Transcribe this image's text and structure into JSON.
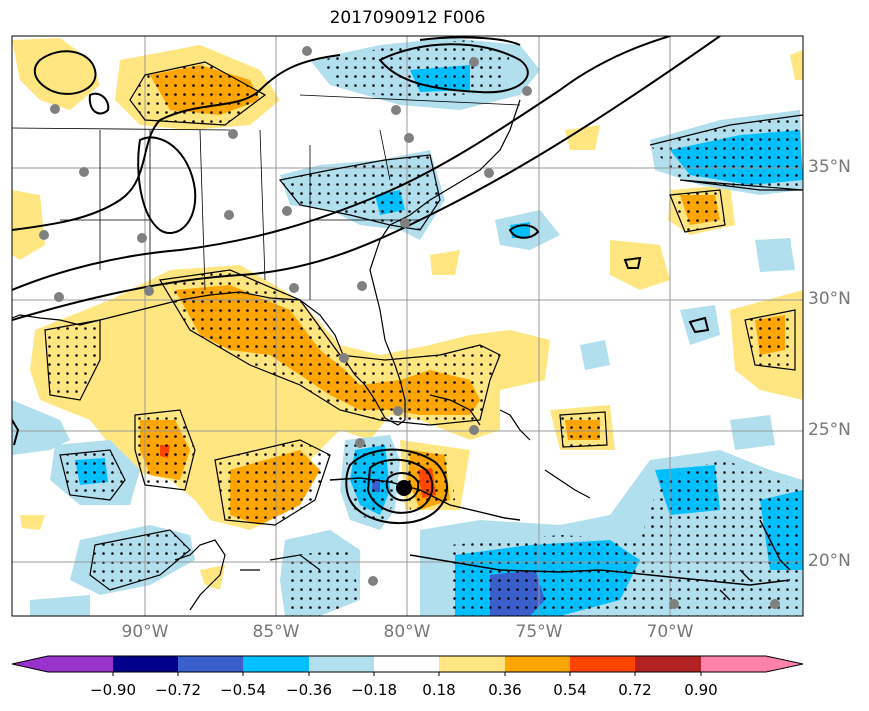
{
  "title": "2017090912 F006",
  "latitude_labels": [
    "35°N",
    "30°N",
    "25°N",
    "20°N"
  ],
  "longitude_labels": [
    "90°W",
    "85°W",
    "80°W",
    "75°W",
    "70°W"
  ],
  "colorbar": {
    "tick_labels": [
      "−0.90",
      "−0.72",
      "−0.54",
      "−0.36",
      "−0.18",
      "0.18",
      "0.36",
      "0.54",
      "0.72",
      "0.90"
    ],
    "colors": [
      "#9a32cd",
      "#00008b",
      "#3a5fcd",
      "#00bfff",
      "#b2dfee",
      "#ffffff",
      "#ffe680",
      "#ffa500",
      "#ff4500",
      "#b22222",
      "#ff82ab"
    ]
  },
  "shading_colors": {
    "light_blue": "#b2dfee",
    "blue": "#00bfff",
    "royal_blue": "#3a5fcd",
    "yellow": "#ffe680",
    "orange": "#ffa500",
    "red": "#ff4500"
  }
}
